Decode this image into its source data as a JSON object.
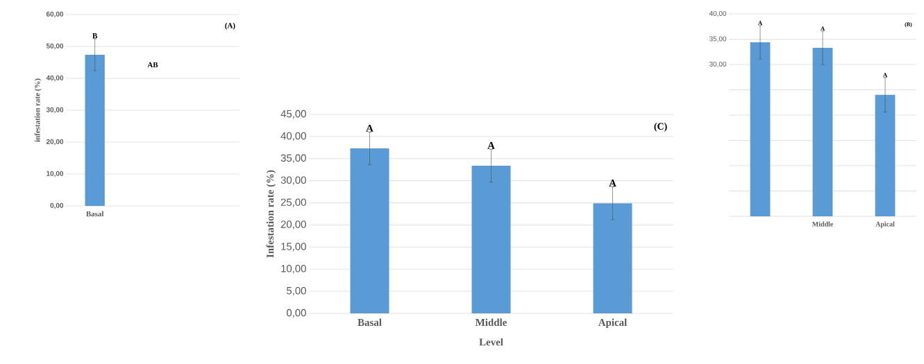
{
  "chart_data": [
    {
      "type": "bar",
      "title": "(A)",
      "ylabel": "infestation rate (%)",
      "categories": [
        "Basal",
        null,
        null
      ],
      "values": [
        47.4,
        null,
        null
      ],
      "errors": [
        5,
        null,
        null
      ],
      "value_labels": [
        "B",
        null,
        null
      ],
      "color": "#5b9bd5",
      "ylim": [
        0,
        60
      ],
      "yticks": [
        {
          "value": 0,
          "label": "0,00"
        },
        {
          "value": 10,
          "label": "10,00"
        },
        {
          "value": 20,
          "label": "20,00"
        },
        {
          "value": 30,
          "label": "30,00"
        },
        {
          "value": 40,
          "label": "40,00"
        },
        {
          "value": 50,
          "label": "50,00"
        },
        {
          "value": 60,
          "label": "60,00"
        }
      ],
      "grid": "y",
      "annotations": [
        "AB"
      ]
    },
    {
      "type": "bar",
      "title": "(C)",
      "xlabel": "Level",
      "ylabel": "Infestation rate (%)",
      "categories": [
        "Basal",
        "Middle",
        "Apical"
      ],
      "values": [
        37.3,
        33.4,
        24.9
      ],
      "errors": [
        3.7,
        3.7,
        3.7
      ],
      "value_labels": [
        "A",
        "A",
        "A"
      ],
      "color": "#5b9bd5",
      "ylim": [
        0,
        45
      ],
      "yticks": [
        {
          "value": 0,
          "label": "0,00"
        },
        {
          "value": 5,
          "label": "5,00"
        },
        {
          "value": 10,
          "label": "10,00"
        },
        {
          "value": 15,
          "label": "15,00"
        },
        {
          "value": 20,
          "label": "20,00"
        },
        {
          "value": 25,
          "label": "25,00"
        },
        {
          "value": 30,
          "label": "30,00"
        },
        {
          "value": 35,
          "label": "35,00"
        },
        {
          "value": 40,
          "label": "40,00"
        },
        {
          "value": 45,
          "label": "45,00"
        }
      ],
      "grid": "y"
    },
    {
      "type": "bar",
      "title": "(B)",
      "categories": [
        null,
        "Middle",
        "Apical"
      ],
      "values": [
        34.4,
        33.3,
        24.0
      ],
      "errors": [
        3.3,
        3.3,
        3.4
      ],
      "value_labels": [
        "A",
        "A",
        "A"
      ],
      "color": "#5b9bd5",
      "ylim": [
        0,
        40
      ],
      "yticks": [
        {
          "value": 0,
          "label": null
        },
        {
          "value": 5,
          "label": null
        },
        {
          "value": 10,
          "label": null
        },
        {
          "value": 15,
          "label": null
        },
        {
          "value": 20,
          "label": null
        },
        {
          "value": 25,
          "label": null
        },
        {
          "value": 30,
          "label": "30,00"
        },
        {
          "value": 35,
          "label": "35,00"
        },
        {
          "value": 40,
          "label": "40,00"
        }
      ],
      "grid": "y"
    }
  ]
}
